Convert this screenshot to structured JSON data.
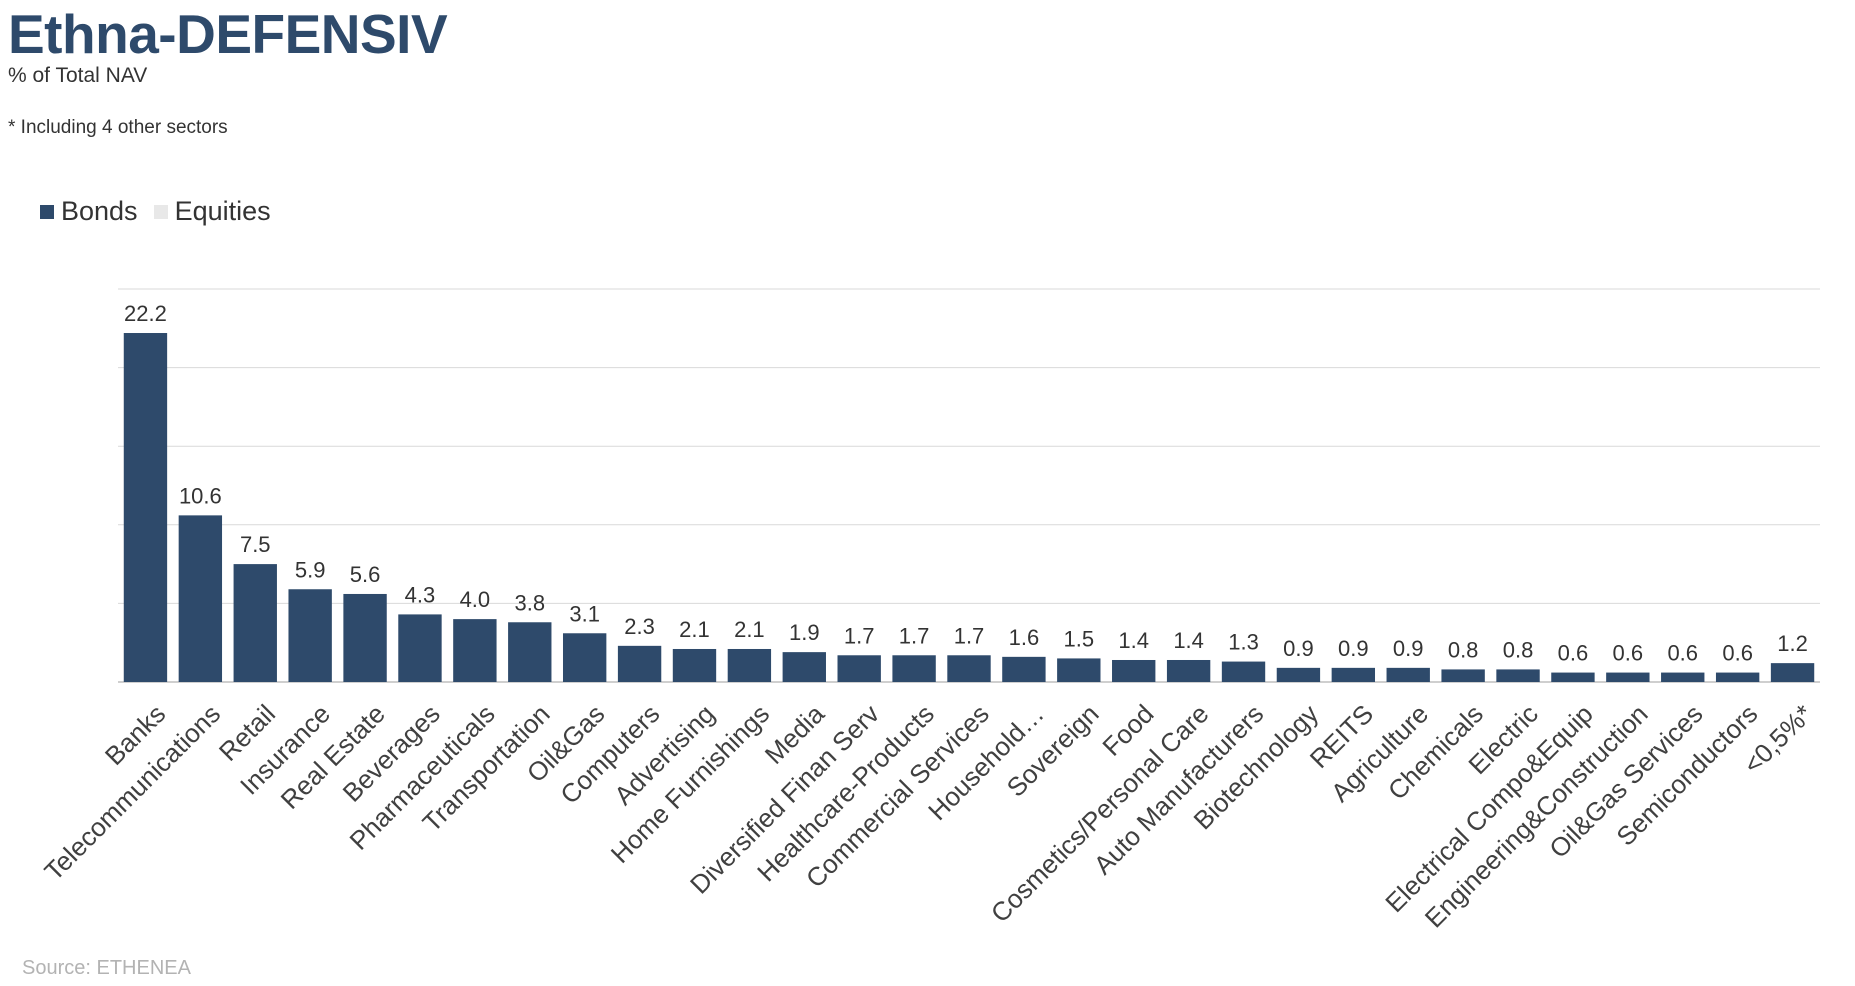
{
  "header": {
    "title": "Ethna-DEFENSIV",
    "subtitle": "% of Total NAV",
    "footnote": "* Including 4 other sectors"
  },
  "legend": [
    {
      "label": "Bonds",
      "color": "#2e4a6b"
    },
    {
      "label": "Equities",
      "color": "#e8e8e8"
    }
  ],
  "source": "Source: ETHENEA",
  "chart_data": {
    "type": "bar",
    "categories": [
      "Banks",
      "Telecommunications",
      "Retail",
      "Insurance",
      "Real Estate",
      "Beverages",
      "Pharmaceuticals",
      "Transportation",
      "Oil&Gas",
      "Computers",
      "Advertising",
      "Home Furnishings",
      "Media",
      "Diversified Finan Serv",
      "Healthcare-Products",
      "Commercial Services",
      "Household…",
      "Sovereign",
      "Food",
      "Cosmetics/Personal Care",
      "Auto Manufacturers",
      "Biotechnology",
      "REITS",
      "Agriculture",
      "Chemicals",
      "Electric",
      "Electrical Compo&Equip",
      "Engineering&Construction",
      "Oil&Gas Services",
      "Semiconductors",
      "<0,5%*"
    ],
    "series": [
      {
        "name": "Bonds",
        "color": "#2e4a6b",
        "values": [
          22.2,
          10.6,
          7.5,
          5.9,
          5.6,
          4.3,
          4.0,
          3.8,
          3.1,
          2.3,
          2.1,
          2.1,
          1.9,
          1.7,
          1.7,
          1.7,
          1.6,
          1.5,
          1.4,
          1.4,
          1.3,
          0.9,
          0.9,
          0.9,
          0.8,
          0.8,
          0.6,
          0.6,
          0.6,
          0.6,
          1.2
        ],
        "labels": [
          "22.2",
          "10.6",
          "7.5",
          "5.9",
          "5.6",
          "4.3",
          "4.0",
          "3.8",
          "3.1",
          "2.3",
          "2.1",
          "2.1",
          "1.9",
          "1.7",
          "1.7",
          "1.7",
          "1.6",
          "1.5",
          "1.4",
          "1.4",
          "1.3",
          "0.9",
          "0.9",
          "0.9",
          "0.8",
          "0.8",
          "0.6",
          "0.6",
          "0.6",
          "0.6",
          "1.2"
        ]
      },
      {
        "name": "Equities",
        "color": "#e8e8e8",
        "values": [
          0,
          0,
          0,
          0,
          0,
          0,
          0,
          0,
          0,
          0,
          0,
          0,
          0,
          0,
          0,
          0,
          0,
          0,
          0,
          0,
          0,
          0,
          0,
          0,
          0,
          0,
          0,
          0,
          0,
          0,
          0
        ]
      }
    ],
    "ylim": [
      0,
      25
    ],
    "gridlines": [
      5,
      10,
      15,
      20,
      25
    ],
    "grid": true,
    "legend_position": "top-left"
  }
}
